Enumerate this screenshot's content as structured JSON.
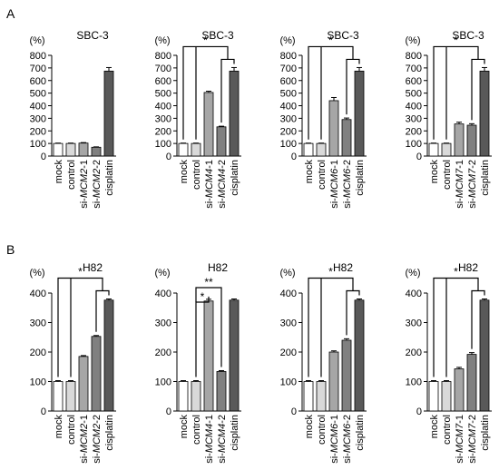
{
  "panel_labels": [
    "A",
    "B"
  ],
  "tick_label_percent": "(%)",
  "asterisk": "*",
  "double_asterisk": "**",
  "colors": {
    "mock": "#ffffff",
    "control": "#d9d9d9",
    "si_1": "#a6a6a6",
    "si_2": "#808080",
    "cisplatin": "#595959",
    "axis": "#000000"
  },
  "chart_data": [
    {
      "type": "bar",
      "panel": "A",
      "title": "SBC-3",
      "categories": [
        [
          "mock"
        ],
        [
          "control"
        ],
        [
          "si-",
          "MCM2",
          "-1"
        ],
        [
          "si-",
          "MCM2",
          "-2"
        ],
        [
          "cisplatin"
        ]
      ],
      "values": [
        100,
        100,
        103,
        70,
        675
      ],
      "errors": [
        3,
        3,
        4,
        3,
        28
      ],
      "ylim": [
        0,
        800
      ],
      "yticks": [
        0,
        100,
        200,
        300,
        400,
        500,
        600,
        700,
        800
      ],
      "ylabel": "(%)",
      "significance": []
    },
    {
      "type": "bar",
      "panel": "A",
      "title": "SBC-3",
      "categories": [
        [
          "mock"
        ],
        [
          "control"
        ],
        [
          "si-",
          "MCM4",
          "-1"
        ],
        [
          "si-",
          "MCM4",
          "-2"
        ],
        [
          "cisplatin"
        ]
      ],
      "values": [
        100,
        100,
        505,
        232,
        675
      ],
      "errors": [
        3,
        3,
        10,
        5,
        28
      ],
      "ylim": [
        0,
        800
      ],
      "yticks": [
        0,
        100,
        200,
        300,
        400,
        500,
        600,
        700,
        800
      ],
      "ylabel": "(%)",
      "significance": [
        {
          "label": "*"
        }
      ]
    },
    {
      "type": "bar",
      "panel": "A",
      "title": "SBC-3",
      "categories": [
        [
          "mock"
        ],
        [
          "control"
        ],
        [
          "si-",
          "MCM6",
          "-1"
        ],
        [
          "si-",
          "MCM6",
          "-2"
        ],
        [
          "cisplatin"
        ]
      ],
      "values": [
        100,
        100,
        440,
        290,
        675
      ],
      "errors": [
        3,
        3,
        25,
        12,
        28
      ],
      "ylim": [
        0,
        800
      ],
      "yticks": [
        0,
        100,
        200,
        300,
        400,
        500,
        600,
        700,
        800
      ],
      "ylabel": "(%)",
      "significance": [
        {
          "label": "*"
        }
      ]
    },
    {
      "type": "bar",
      "panel": "A",
      "title": "SBC-3",
      "categories": [
        [
          "mock"
        ],
        [
          "control"
        ],
        [
          "si-",
          "MCM7",
          "-1"
        ],
        [
          "si-",
          "MCM7",
          "-2"
        ],
        [
          "cisplatin"
        ]
      ],
      "values": [
        100,
        100,
        255,
        245,
        675
      ],
      "errors": [
        3,
        3,
        14,
        12,
        28
      ],
      "ylim": [
        0,
        800
      ],
      "yticks": [
        0,
        100,
        200,
        300,
        400,
        500,
        600,
        700,
        800
      ],
      "ylabel": "(%)",
      "significance": [
        {
          "label": "*"
        }
      ]
    },
    {
      "type": "bar",
      "panel": "B",
      "title": "H82",
      "categories": [
        [
          "mock"
        ],
        [
          "control"
        ],
        [
          "si-",
          "MCM2",
          "-1"
        ],
        [
          "si-",
          "MCM2",
          "-2"
        ],
        [
          "cisplatin"
        ]
      ],
      "values": [
        100,
        100,
        185,
        253,
        376
      ],
      "errors": [
        3,
        3,
        3,
        3,
        4
      ],
      "ylim": [
        0,
        400
      ],
      "yticks": [
        0,
        100,
        200,
        300,
        400
      ],
      "ylabel": "(%)",
      "significance": [
        {
          "label": "*"
        }
      ]
    },
    {
      "type": "bar",
      "panel": "B",
      "title": "H82",
      "categories": [
        [
          "mock"
        ],
        [
          "control"
        ],
        [
          "si-",
          "MCM4",
          "-1"
        ],
        [
          "si-",
          "MCM4",
          "-2"
        ],
        [
          "cisplatin"
        ]
      ],
      "values": [
        100,
        100,
        373,
        134,
        376
      ],
      "errors": [
        3,
        3,
        6,
        3,
        4
      ],
      "ylim": [
        0,
        400
      ],
      "yticks": [
        0,
        100,
        200,
        300,
        400
      ],
      "ylabel": "(%)",
      "significance": [
        {
          "label": "*"
        },
        {
          "label": "**"
        }
      ]
    },
    {
      "type": "bar",
      "panel": "B",
      "title": "H82",
      "categories": [
        [
          "mock"
        ],
        [
          "control"
        ],
        [
          "si-",
          "MCM6",
          "-1"
        ],
        [
          "si-",
          "MCM6",
          "-2"
        ],
        [
          "cisplatin"
        ]
      ],
      "values": [
        100,
        100,
        200,
        240,
        376
      ],
      "errors": [
        3,
        3,
        4,
        5,
        4
      ],
      "ylim": [
        0,
        400
      ],
      "yticks": [
        0,
        100,
        200,
        300,
        400
      ],
      "ylabel": "(%)",
      "significance": [
        {
          "label": "*"
        }
      ]
    },
    {
      "type": "bar",
      "panel": "B",
      "title": "H82",
      "categories": [
        [
          "mock"
        ],
        [
          "control"
        ],
        [
          "si-",
          "MCM7",
          "-1"
        ],
        [
          "si-",
          "MCM7",
          "-2"
        ],
        [
          "cisplatin"
        ]
      ],
      "values": [
        100,
        100,
        143,
        192,
        376
      ],
      "errors": [
        3,
        3,
        5,
        6,
        4
      ],
      "ylim": [
        0,
        400
      ],
      "yticks": [
        0,
        100,
        200,
        300,
        400
      ],
      "ylabel": "(%)",
      "significance": [
        {
          "label": "*"
        }
      ]
    }
  ]
}
